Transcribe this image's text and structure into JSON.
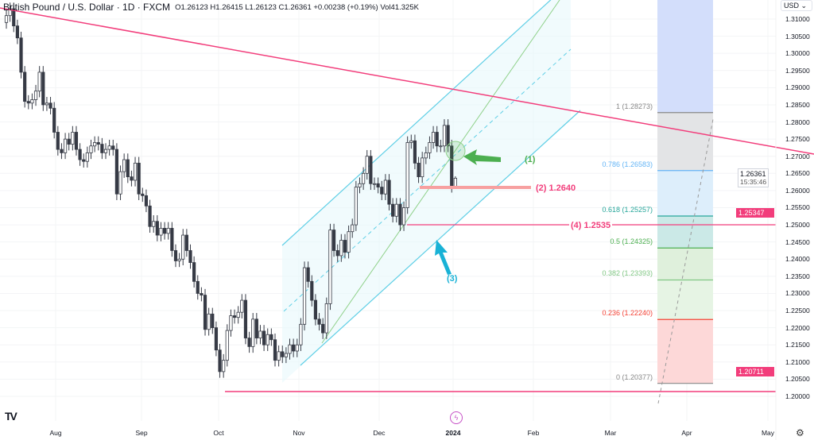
{
  "header": {
    "symbol": "British Pound / U.S. Dollar · 1D · FXCM",
    "ohlc": "O1.26123 H1.26415 L1.26123 C1.26361 +0.00238 (+0.19%) Vol41.325K"
  },
  "currency_selector": "USD",
  "colors": {
    "bull": "#ffffff",
    "bear": "#363a45",
    "trend": "#f23d7b",
    "channel": "#5fcfe6",
    "green": "#4caf50",
    "arrow3": "#19b2d6"
  },
  "icons": {
    "logo": "tradingview-logo",
    "bolt": "lightning-icon",
    "settings": "gear-icon"
  },
  "logo_text": "TV",
  "price_axis": {
    "ticks": [
      "1.31000",
      "1.30500",
      "1.30000",
      "1.29500",
      "1.29000",
      "1.28500",
      "1.28000",
      "1.27500",
      "1.27000",
      "1.26500",
      "1.26000",
      "1.25500",
      "1.25000",
      "1.24500",
      "1.24000",
      "1.23500",
      "1.23000",
      "1.22500",
      "1.22000",
      "1.21500",
      "1.21000",
      "1.20500",
      "1.20000"
    ],
    "last_price": "1.26361",
    "countdown": "15:35:46",
    "badges": [
      {
        "value": "1.25347",
        "price": 1.25347
      },
      {
        "value": "1.20711",
        "price": 1.20711
      }
    ]
  },
  "time_axis": [
    "Aug",
    "Sep",
    "Oct",
    "Nov",
    "Dec",
    "2024",
    "Feb",
    "Mar",
    "Apr",
    "May"
  ],
  "chart_data": {
    "type": "candlestick",
    "closes": [
      1.311,
      1.313,
      1.308,
      1.3045,
      1.2945,
      1.286,
      1.2855,
      1.2865,
      1.289,
      1.2945,
      1.285,
      1.2855,
      1.284,
      1.277,
      1.272,
      1.271,
      1.275,
      1.2735,
      1.277,
      1.272,
      1.269,
      1.2685,
      1.271,
      1.273,
      1.274,
      1.2735,
      1.271,
      1.272,
      1.273,
      1.272,
      1.259,
      1.2655,
      1.269,
      1.264,
      1.263,
      1.268,
      1.259,
      1.2585,
      1.2555,
      1.2495,
      1.251,
      1.247,
      1.249,
      1.2475,
      1.249,
      1.2425,
      1.2395,
      1.24,
      1.247,
      1.2425,
      1.239,
      1.2335,
      1.23,
      1.2295,
      1.2195,
      1.224,
      1.22,
      1.2135,
      1.2072,
      1.2105,
      1.2192,
      1.2235,
      1.223,
      1.2245,
      1.228,
      1.217,
      1.2145,
      1.2225,
      1.217,
      1.219,
      1.215,
      1.218,
      1.2165,
      1.2105,
      1.213,
      1.2115,
      1.2125,
      1.215,
      1.2132,
      1.215,
      1.221,
      1.2375,
      1.2335,
      1.228,
      1.2225,
      1.221,
      1.2185,
      1.227,
      1.2485,
      1.2425,
      1.241,
      1.2455,
      1.242,
      1.248,
      1.25,
      1.261,
      1.262,
      1.265,
      1.27,
      1.262,
      1.262,
      1.261,
      1.259,
      1.263,
      1.256,
      1.2525,
      1.256,
      1.25,
      1.255,
      1.274,
      1.2745,
      1.268,
      1.264,
      1.2695,
      1.271,
      1.274,
      1.277,
      1.273,
      1.273,
      1.279,
      1.273,
      1.2612,
      1.2636
    ],
    "last_candle": {
      "open": 1.26123,
      "high": 1.26415,
      "low": 1.26123,
      "close": 1.26361
    }
  },
  "fibonacci": [
    {
      "label": "1 (1.28273)",
      "price": 1.28273,
      "color": "#888888",
      "fill": "#e3e4e6"
    },
    {
      "label": "0.786 (1.26583)",
      "price": 1.26583,
      "color": "#64b5f6",
      "fill": "#ddeefb"
    },
    {
      "label": "0.618 (1.25257)",
      "price": 1.25257,
      "color": "#26a69a",
      "fill": "#cbe9e7"
    },
    {
      "label": "0.5 (1.24325)",
      "price": 1.24325,
      "color": "#4caf50",
      "fill": "#dff0dc"
    },
    {
      "label": "0.382 (1.23393)",
      "price": 1.23393,
      "color": "#81c784",
      "fill": "#e6f4e4"
    },
    {
      "label": "0.236 (1.22240)",
      "price": 1.2224,
      "color": "#f44336",
      "fill": "#fdd8d8"
    },
    {
      "label": "0 (1.20377)",
      "price": 1.20377,
      "color": "#888888",
      "fill": ""
    }
  ],
  "annotations": {
    "a1": "(1)",
    "a2": "(2) 1.2640",
    "a3": "(3)",
    "a4": "(4) 1.2535"
  }
}
